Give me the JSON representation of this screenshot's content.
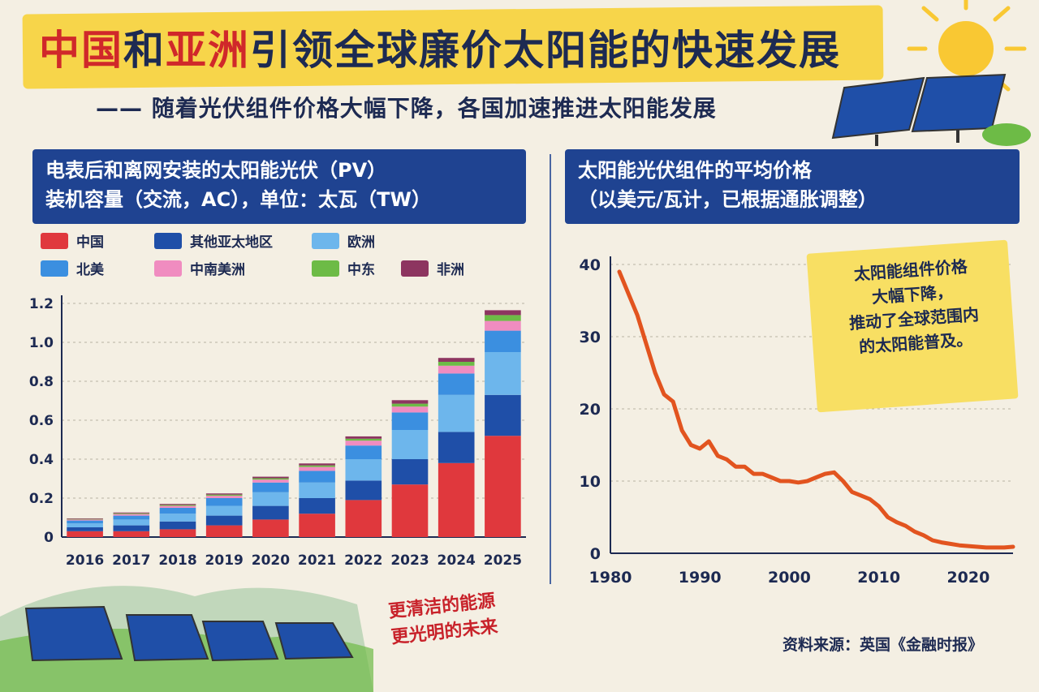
{
  "header": {
    "title_red_1": "中国",
    "title_mid": "和",
    "title_red_2": "亚洲",
    "title_rest": "引领全球廉价太阳能的快速发展",
    "subtitle": "—— 随着光伏组件价格大幅下降，各国加速推进太阳能发展"
  },
  "colors": {
    "china": "#e0383d",
    "other_apac": "#1f4fa8",
    "europe": "#6db6ec",
    "north_america": "#3b8fe0",
    "latam": "#f08cc0",
    "middle_east": "#6dbb46",
    "africa": "#8d3560",
    "price_line": "#e2541f"
  },
  "annotation": {
    "line1": "太阳能组件价格",
    "line2": "大幅下降，",
    "line3": "推动了全球范围内",
    "line4": "的太阳能普及。"
  },
  "slogan": {
    "line1": "更清洁的能源",
    "line2": "更光明的未来"
  },
  "source": "资料来源：英国《金融时报》",
  "chart_data": [
    {
      "type": "bar",
      "stacked": true,
      "title_line1": "电表后和离网安装的太阳能光伏（PV）",
      "title_line2": "装机容量（交流，AC），单位：太瓦（TW）",
      "categories": [
        "2016",
        "2017",
        "2018",
        "2019",
        "2020",
        "2021",
        "2022",
        "2023",
        "2024",
        "2025"
      ],
      "ylim": [
        0,
        1.2
      ],
      "yticks": [
        0,
        0.2,
        0.4,
        0.6,
        0.8,
        1.0,
        1.2
      ],
      "ytick_labels": [
        "0",
        "0.2",
        "0.4",
        "0.6",
        "0.8",
        "1.0",
        "1.2"
      ],
      "grid": true,
      "legend_position": "top",
      "series": [
        {
          "name": "中国",
          "color_key": "china",
          "values": [
            0.03,
            0.03,
            0.04,
            0.06,
            0.09,
            0.12,
            0.19,
            0.27,
            0.38,
            0.52
          ]
        },
        {
          "name": "其他亚太地区",
          "color_key": "other_apac",
          "values": [
            0.02,
            0.03,
            0.04,
            0.05,
            0.07,
            0.08,
            0.1,
            0.13,
            0.16,
            0.21
          ]
        },
        {
          "name": "欧洲",
          "color_key": "europe",
          "values": [
            0.02,
            0.03,
            0.04,
            0.05,
            0.07,
            0.08,
            0.11,
            0.15,
            0.19,
            0.22
          ]
        },
        {
          "name": "北美",
          "color_key": "north_america",
          "values": [
            0.015,
            0.02,
            0.03,
            0.04,
            0.05,
            0.06,
            0.07,
            0.09,
            0.11,
            0.11
          ]
        },
        {
          "name": "中南美洲",
          "color_key": "latam",
          "values": [
            0.005,
            0.008,
            0.01,
            0.012,
            0.015,
            0.02,
            0.025,
            0.03,
            0.04,
            0.05
          ]
        },
        {
          "name": "中东",
          "color_key": "middle_east",
          "values": [
            0.003,
            0.004,
            0.005,
            0.006,
            0.007,
            0.008,
            0.01,
            0.015,
            0.02,
            0.03
          ]
        },
        {
          "name": "非洲",
          "color_key": "africa",
          "values": [
            0.003,
            0.004,
            0.005,
            0.006,
            0.008,
            0.01,
            0.012,
            0.018,
            0.02,
            0.025
          ]
        }
      ]
    },
    {
      "type": "line",
      "title_line1": "太阳能光伏组件的平均价格",
      "title_line2": "（以美元/瓦计，已根据通胀调整）",
      "xlim": [
        1980,
        2025
      ],
      "ylim": [
        0,
        40
      ],
      "xticks": [
        1980,
        1990,
        2000,
        2010,
        2020
      ],
      "xtick_labels": [
        "1980",
        "1990",
        "2000",
        "2010",
        "2020"
      ],
      "yticks": [
        0,
        10,
        20,
        30,
        40
      ],
      "ytick_labels": [
        "0",
        "10",
        "20",
        "30",
        "40"
      ],
      "grid": true,
      "color_key": "price_line",
      "x": [
        1981,
        1982,
        1983,
        1984,
        1985,
        1986,
        1987,
        1988,
        1989,
        1990,
        1991,
        1992,
        1993,
        1994,
        1995,
        1996,
        1997,
        1998,
        1999,
        2000,
        2001,
        2002,
        2003,
        2004,
        2005,
        2006,
        2007,
        2008,
        2009,
        2010,
        2011,
        2012,
        2013,
        2014,
        2015,
        2016,
        2017,
        2018,
        2019,
        2020,
        2021,
        2022,
        2023,
        2024,
        2025
      ],
      "y": [
        39,
        36,
        33,
        29,
        25,
        22,
        21,
        17,
        15,
        14.5,
        15.5,
        13.5,
        13,
        12,
        12,
        11,
        11,
        10.5,
        10,
        10,
        9.8,
        10,
        10.5,
        11,
        11.2,
        10,
        8.5,
        8,
        7.5,
        6.5,
        5,
        4.3,
        3.8,
        3,
        2.5,
        1.8,
        1.5,
        1.3,
        1.1,
        1.0,
        0.9,
        0.8,
        0.8,
        0.8,
        0.9
      ]
    }
  ]
}
